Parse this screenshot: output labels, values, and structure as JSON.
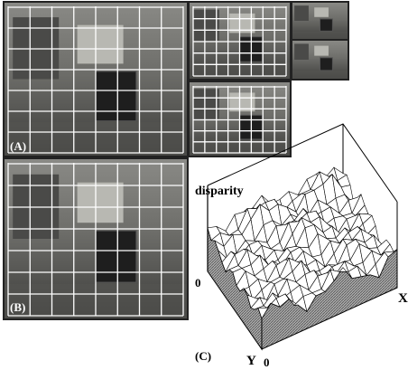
{
  "panels": {
    "A": {
      "label": "(A)"
    },
    "B": {
      "label": "(B)"
    },
    "C": {
      "label": "(C)"
    }
  },
  "plot": {
    "z_label": "disparity",
    "z_origin": "0",
    "x_label": "X",
    "y_label": "Y",
    "xy_origin": "0"
  }
}
